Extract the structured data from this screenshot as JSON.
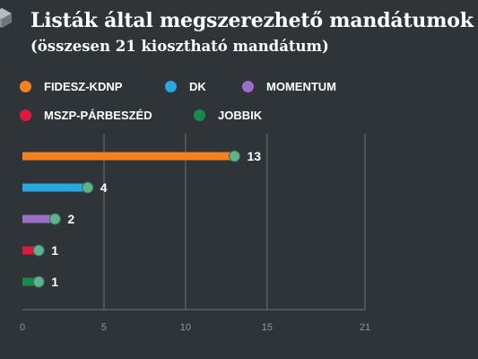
{
  "header": {
    "title": "Listák által megszerezhető mandátumok",
    "subtitle": "(összesen 21 kiosztható mandátum)"
  },
  "chart_data": {
    "type": "bar",
    "orientation": "horizontal",
    "categories": [
      "FIDESZ-KDNP",
      "DK",
      "MOMENTUM",
      "MSZP-PÁRBESZÉD",
      "JOBBIK"
    ],
    "values": [
      13,
      4,
      2,
      1,
      1
    ],
    "data_labels": [
      "13",
      "4",
      "2",
      "1",
      "1"
    ],
    "colors": [
      "#f5821f",
      "#29a8e0",
      "#9a6fc8",
      "#e2173c",
      "#1a8a4c"
    ],
    "marker_color": "#5fb38a",
    "xlim": [
      0,
      21
    ],
    "xticks": [
      "0",
      "5",
      "10",
      "15",
      "21"
    ],
    "xtick_values": [
      0,
      5,
      10,
      15,
      21
    ],
    "grid": true,
    "legend_position": "top"
  }
}
